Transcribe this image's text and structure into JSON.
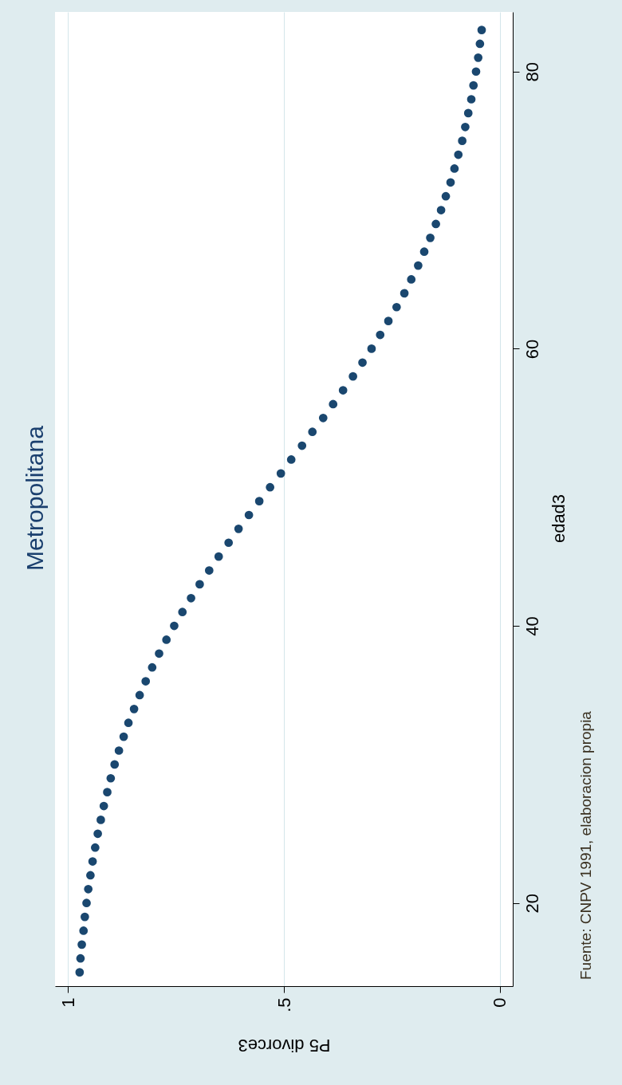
{
  "chart_data": {
    "type": "scatter",
    "title": "Metropolitana",
    "xlabel": "P5 divorce3",
    "ylabel": "edad3",
    "annotations": [
      "Fuente: CNPV 1991, elaboracion propia"
    ],
    "values": [
      15,
      16,
      17,
      18,
      19,
      20,
      21,
      22,
      23,
      24,
      25,
      26,
      27,
      28,
      29,
      30,
      31,
      32,
      33,
      34,
      35,
      36,
      37,
      38,
      39,
      40,
      41,
      42,
      43,
      44,
      45,
      46,
      47,
      48,
      49,
      50,
      51,
      52,
      53,
      54,
      55,
      56,
      57,
      58,
      59,
      60,
      61,
      62,
      63,
      64,
      65,
      66,
      67,
      68,
      69,
      70,
      71,
      72,
      73,
      74,
      75,
      76,
      77,
      78,
      79,
      80,
      81,
      82,
      83
    ],
    "x": [
      0.973,
      0.971,
      0.968,
      0.964,
      0.961,
      0.957,
      0.953,
      0.948,
      0.943,
      0.937,
      0.931,
      0.924,
      0.917,
      0.909,
      0.901,
      0.892,
      0.882,
      0.871,
      0.86,
      0.847,
      0.834,
      0.82,
      0.805,
      0.789,
      0.772,
      0.754,
      0.735,
      0.715,
      0.695,
      0.673,
      0.651,
      0.628,
      0.605,
      0.581,
      0.557,
      0.532,
      0.507,
      0.483,
      0.458,
      0.434,
      0.409,
      0.386,
      0.363,
      0.34,
      0.318,
      0.297,
      0.277,
      0.258,
      0.239,
      0.221,
      0.205,
      0.189,
      0.175,
      0.161,
      0.148,
      0.136,
      0.125,
      0.114,
      0.105,
      0.096,
      0.087,
      0.08,
      0.073,
      0.066,
      0.061,
      0.055,
      0.05,
      0.046,
      0.042
    ],
    "color": "#1a476f",
    "ylim": [
      14,
      84.3
    ],
    "yticks": [
      20,
      40,
      60,
      80
    ],
    "xlim": [
      1.03,
      -0.03
    ],
    "xticks": [
      0,
      {
        "value": 0.5,
        "label": ".5"
      },
      1
    ],
    "grid": "x",
    "marker": "circle"
  }
}
